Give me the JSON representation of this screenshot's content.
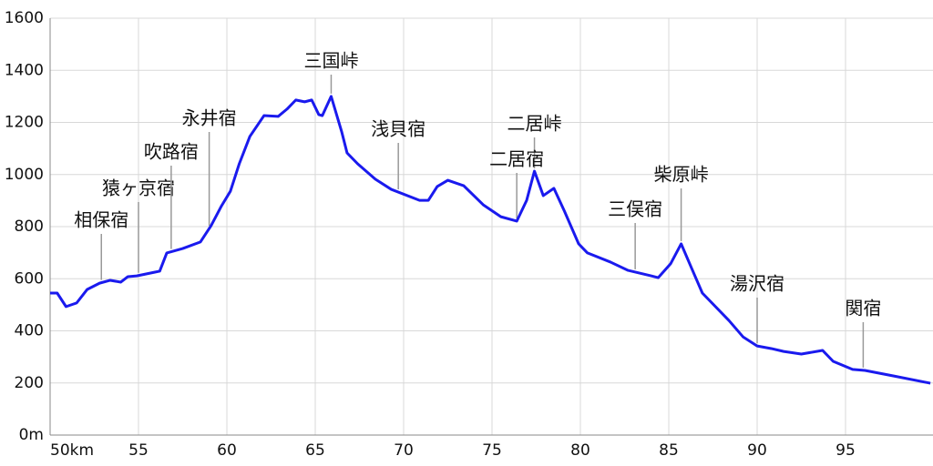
{
  "chart_data": {
    "type": "line",
    "x": [
      50,
      50.4,
      50.9,
      51.5,
      52.1,
      52.8,
      53.4,
      54.0,
      54.4,
      54.9,
      55.9,
      56.2,
      56.6,
      57.5,
      58.5,
      59.1,
      59.7,
      60.2,
      60.7,
      61.3,
      62.1,
      62.9,
      63.4,
      63.9,
      64.4,
      64.8,
      65.2,
      65.4,
      65.9,
      66.5,
      66.8,
      67.4,
      68.4,
      69.3,
      70.9,
      71.4,
      71.9,
      72.5,
      73.4,
      74.5,
      75.5,
      76.4,
      76.96,
      77.4,
      77.9,
      78.5,
      79.1,
      79.9,
      80.4,
      81.7,
      82.7,
      84.0,
      84.4,
      85.1,
      85.7,
      86.3,
      86.9,
      88.4,
      89.2,
      90.0,
      90.8,
      91.5,
      92.5,
      93.7,
      94.3,
      95.4,
      96.1,
      97.7,
      99.8
    ],
    "values": [
      545,
      545,
      493,
      507,
      559,
      583,
      594,
      587,
      608,
      611,
      625,
      629,
      699,
      716,
      741,
      803,
      880,
      936,
      1041,
      1146,
      1226,
      1223,
      1251,
      1286,
      1279,
      1286,
      1230,
      1226,
      1300,
      1163,
      1083,
      1041,
      982,
      943,
      901,
      901,
      954,
      978,
      957,
      884,
      838,
      821,
      901,
      1013,
      919,
      947,
      859,
      734,
      699,
      664,
      632,
      611,
      604,
      657,
      734,
      639,
      545,
      440,
      377,
      342,
      332,
      321,
      311,
      325,
      283,
      252,
      248,
      227,
      199
    ],
    "color": "#1a1aee",
    "xlim": [
      50,
      100
    ],
    "ylim": [
      0,
      1600
    ],
    "xticks": [
      {
        "value": 50,
        "label": "50km"
      },
      55,
      60,
      65,
      70,
      75,
      80,
      85,
      90,
      95
    ],
    "yticks": [
      {
        "value": 0,
        "label": "0m"
      },
      200,
      400,
      600,
      800,
      1000,
      1200,
      1400,
      1600
    ],
    "grid": true,
    "annotations": [
      {
        "text": "相保宿",
        "x": 52.9
      },
      {
        "text": "猿ヶ京宿",
        "x": 55.0
      },
      {
        "text": "吹路宿",
        "x": 56.85
      },
      {
        "text": "永井宿",
        "x": 59.0
      },
      {
        "text": "三国峠",
        "x": 65.9
      },
      {
        "text": "浅貝宿",
        "x": 69.7
      },
      {
        "text": "二居峠",
        "x": 77.4
      },
      {
        "text": "二居宿",
        "x": 76.4
      },
      {
        "text": "柴原峠",
        "x": 85.7
      },
      {
        "text": "三俣宿",
        "x": 83.1
      },
      {
        "text": "湯沢宿",
        "x": 90.0
      },
      {
        "text": "関宿",
        "x": 96.0
      }
    ]
  }
}
